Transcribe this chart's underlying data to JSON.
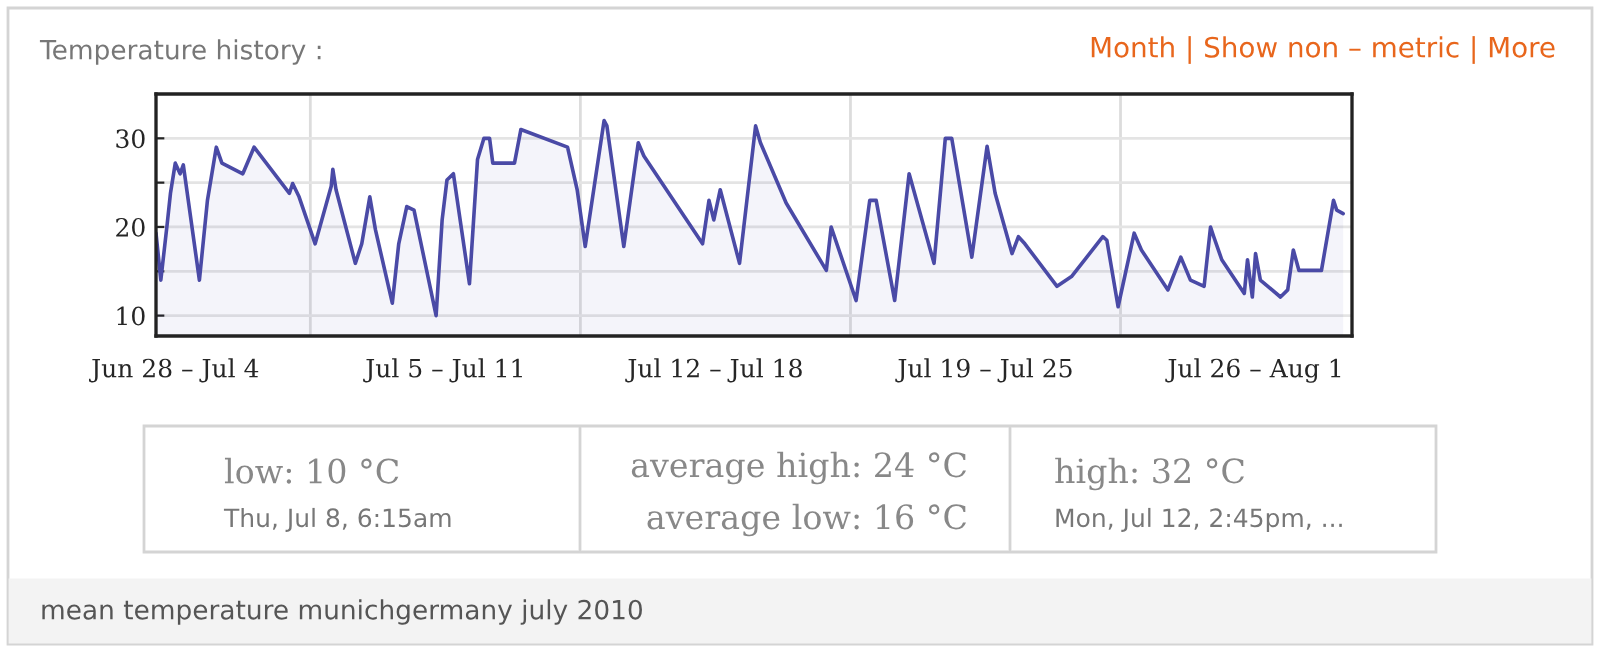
{
  "chart_data": {
    "type": "area",
    "title": "Temperature history :",
    "x": [
      "2010-07-01T00:00",
      "2010-07-01T03:00",
      "2010-07-01T07:00",
      "2010-07-01T09:00",
      "2010-07-01T12:00",
      "2010-07-01T15:00",
      "2010-07-01T17:00",
      "2010-07-02T03:00",
      "2010-07-02T08:00",
      "2010-07-02T13:30",
      "2010-07-02T17:00",
      "2010-07-03T06:00",
      "2010-07-03T13:00",
      "2010-07-04T11:00",
      "2010-07-04T13:00",
      "2010-07-04T17:00",
      "2010-07-05T03:00",
      "2010-07-05T13:00",
      "2010-07-05T14:00",
      "2010-07-05T16:00",
      "2010-07-06T04:00",
      "2010-07-06T08:00",
      "2010-07-06T13:00",
      "2010-07-06T16:30",
      "2010-07-07T03:00",
      "2010-07-07T07:00",
      "2010-07-07T12:00",
      "2010-07-07T16:30",
      "2010-07-08T06:15",
      "2010-07-08T10:00",
      "2010-07-08T13:00",
      "2010-07-08T17:00",
      "2010-07-09T03:00",
      "2010-07-09T08:00",
      "2010-07-09T12:00",
      "2010-07-09T15:30",
      "2010-07-09T17:30",
      "2010-07-10T07:00",
      "2010-07-10T11:00",
      "2010-07-11T16:00",
      "2010-07-11T22:00",
      "2010-07-12T03:00",
      "2010-07-12T14:45",
      "2010-07-12T16:30",
      "2010-07-13T03:00",
      "2010-07-13T12:00",
      "2010-07-13T15:30",
      "2010-07-15T04:00",
      "2010-07-15T08:00",
      "2010-07-15T11:00",
      "2010-07-15T15:00",
      "2010-07-16T03:00",
      "2010-07-16T13:00",
      "2010-07-16T16:00",
      "2010-07-17T08:00",
      "2010-07-18T09:00",
      "2010-07-18T12:00",
      "2010-07-19T03:30",
      "2010-07-19T12:00",
      "2010-07-19T16:00",
      "2010-07-20T03:30",
      "2010-07-20T12:30",
      "2010-07-21T04:00",
      "2010-07-21T11:00",
      "2010-07-21T15:00",
      "2010-07-22T03:30",
      "2010-07-22T13:00",
      "2010-07-22T18:00",
      "2010-07-23T04:30",
      "2010-07-23T08:30",
      "2010-07-23T12:30",
      "2010-07-24T08:30",
      "2010-07-24T17:30",
      "2010-07-25T13:00",
      "2010-07-25T15:30",
      "2010-07-25T22:30",
      "2010-07-26T08:30",
      "2010-07-26T13:00",
      "2010-07-27T05:30",
      "2010-07-27T13:30",
      "2010-07-27T19:30",
      "2010-07-28T04:00",
      "2010-07-28T08:00",
      "2010-07-28T10:00",
      "2010-07-28T15:00",
      "2010-07-29T05:00",
      "2010-07-29T07:00",
      "2010-07-29T10:00",
      "2010-07-29T12:00",
      "2010-07-29T15:00",
      "2010-07-30T03:30",
      "2010-07-30T08:00",
      "2010-07-30T11:30",
      "2010-07-30T15:00",
      "2010-07-31T05:00",
      "2010-07-31T12:30",
      "2010-07-31T14:30",
      "2010-07-31T18:30"
    ],
    "series": [
      {
        "color": "#4a4aa6",
        "values": [
          19.3,
          14,
          20.4,
          23.8,
          27.2,
          26,
          27,
          14,
          23,
          29,
          27.2,
          26,
          29,
          23.8,
          24.9,
          23.4,
          18.1,
          24.6,
          26.5,
          24.2,
          15.9,
          18.1,
          23.4,
          19.7,
          11.4,
          18.1,
          22.3,
          21.9,
          10,
          20.8,
          25.3,
          26,
          13.6,
          27.6,
          30,
          30,
          27.2,
          27.2,
          31,
          29,
          24.2,
          17.8,
          32,
          31.4,
          17.8,
          29.5,
          28,
          18.1,
          23,
          20.8,
          24.2,
          15.9,
          31.4,
          29.5,
          22.7,
          15.1,
          20,
          11.7,
          23,
          23,
          11.7,
          26,
          15.9,
          30,
          30,
          16.6,
          29.1,
          23.8,
          17,
          18.9,
          18.1,
          13.3,
          14.4,
          18.9,
          18.5,
          11,
          19.3,
          17.4,
          12.9,
          16.6,
          14,
          13.3,
          20,
          18.9,
          16.3,
          12.5,
          16.3,
          12.1,
          17,
          14,
          12.1,
          12.9,
          17.4,
          15.1,
          15.1,
          23,
          21.9,
          21.5
        ]
      }
    ],
    "xlim": [
      "2010-07-01",
      "2010-08-01"
    ],
    "xticks": [
      {
        "value": "2010-07-01T12:00",
        "label": "Jun 28 – Jul 4"
      },
      {
        "value": "2010-07-08T12:00",
        "label": "Jul 5 – Jul 11"
      },
      {
        "value": "2010-07-15T12:00",
        "label": "Jul 12 – Jul 18"
      },
      {
        "value": "2010-07-22T12:00",
        "label": "Jul 19 – Jul 25"
      },
      {
        "value": "2010-07-29T12:00",
        "label": "Jul 26 – Aug 1"
      }
    ],
    "ylim": [
      7.7,
      35
    ],
    "yticks": [
      10,
      {
        "value": 15,
        "label": null
      },
      20,
      {
        "value": 25,
        "label": null
      },
      30
    ],
    "grid": "y",
    "ref_lines": [
      {
        "axis": "x",
        "value": "2010-07-05",
        "color": "#dcdcdc"
      },
      {
        "axis": "x",
        "value": "2010-07-12",
        "color": "#dcdcdc"
      },
      {
        "axis": "x",
        "value": "2010-07-19",
        "color": "#dcdcdc"
      },
      {
        "axis": "x",
        "value": "2010-07-26",
        "color": "#dcdcdc"
      }
    ],
    "annotations": [
      "Month | Show non – metric | More",
      "low: 10 °C",
      "Thu, Jul 8, 6:15am",
      "average high: 24 °C",
      "average low: 16 °C",
      "high: 32 °C",
      "Mon, Jul 12, 2:45pm, ...",
      "mean temperature munichgermany july 2010"
    ]
  }
}
